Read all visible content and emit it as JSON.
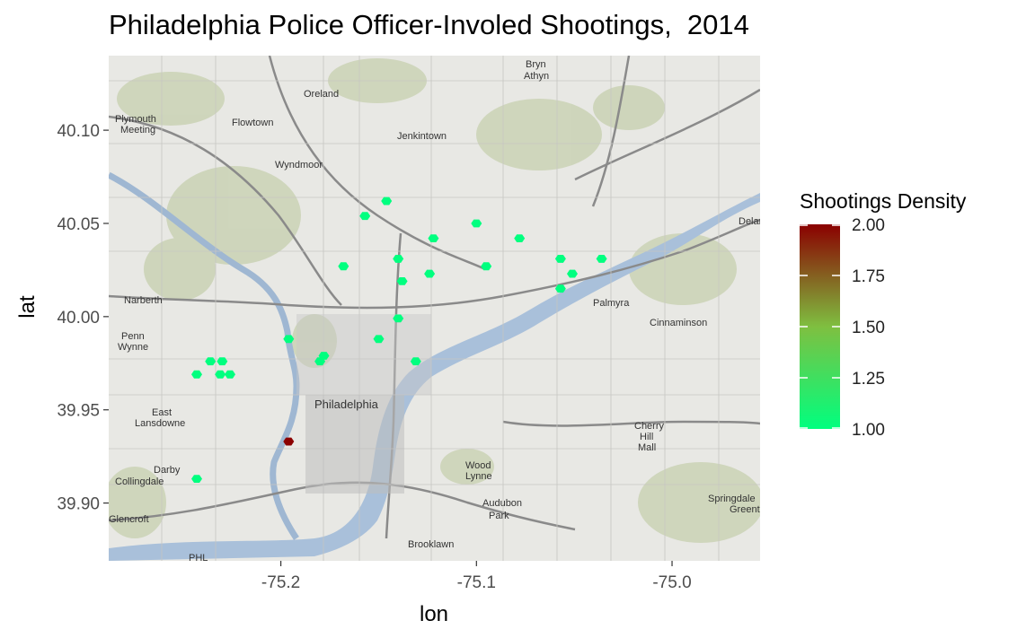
{
  "page": {
    "title": "Philadelphia Police Officer-Involed Shootings,  2014"
  },
  "chart_data": {
    "type": "scatter",
    "title": "Philadelphia Police Officer-Involed Shootings,  2014",
    "xlabel": "lon",
    "ylabel": "lat",
    "xlim": [
      -75.288,
      -74.955
    ],
    "ylim": [
      39.869,
      40.14
    ],
    "x_ticks": [
      -75.2,
      -75.1,
      -75.0
    ],
    "x_tick_labels": [
      "-75.2",
      "-75.1",
      "-75.0"
    ],
    "y_ticks": [
      39.9,
      39.95,
      40.0,
      40.05,
      40.1
    ],
    "y_tick_labels": [
      "39.90",
      "39.95",
      "40.00",
      "40.05",
      "40.10"
    ],
    "background": "street map tiles",
    "legend": {
      "title": "Shootings Density",
      "placement": "right",
      "min": 1.0,
      "max": 2.0,
      "ticks": [
        1.0,
        1.25,
        1.5,
        1.75,
        2.0
      ],
      "tick_labels": [
        "1.00",
        "1.25",
        "1.50",
        "1.75",
        "2.00"
      ],
      "color_low": "#00ff7f",
      "color_mid": "#7fbf40",
      "color_high": "#8b0000"
    },
    "points": [
      {
        "lon": -75.146,
        "lat": 40.062,
        "density": 1.0
      },
      {
        "lon": -75.157,
        "lat": 40.054,
        "density": 1.0
      },
      {
        "lon": -75.1,
        "lat": 40.05,
        "density": 1.0
      },
      {
        "lon": -75.122,
        "lat": 40.042,
        "density": 1.0
      },
      {
        "lon": -75.078,
        "lat": 40.042,
        "density": 1.0
      },
      {
        "lon": -75.14,
        "lat": 40.031,
        "density": 1.0
      },
      {
        "lon": -75.057,
        "lat": 40.031,
        "density": 1.0
      },
      {
        "lon": -75.036,
        "lat": 40.031,
        "density": 1.0
      },
      {
        "lon": -75.168,
        "lat": 40.027,
        "density": 1.0
      },
      {
        "lon": -75.095,
        "lat": 40.027,
        "density": 1.0
      },
      {
        "lon": -75.124,
        "lat": 40.023,
        "density": 1.0
      },
      {
        "lon": -75.051,
        "lat": 40.023,
        "density": 1.0
      },
      {
        "lon": -75.138,
        "lat": 40.019,
        "density": 1.0
      },
      {
        "lon": -75.057,
        "lat": 40.015,
        "density": 1.0
      },
      {
        "lon": -75.14,
        "lat": 39.999,
        "density": 1.0
      },
      {
        "lon": -75.196,
        "lat": 39.988,
        "density": 1.0
      },
      {
        "lon": -75.15,
        "lat": 39.988,
        "density": 1.0
      },
      {
        "lon": -75.178,
        "lat": 39.979,
        "density": 1.0
      },
      {
        "lon": -75.18,
        "lat": 39.976,
        "density": 1.0
      },
      {
        "lon": -75.131,
        "lat": 39.976,
        "density": 1.0
      },
      {
        "lon": -75.236,
        "lat": 39.976,
        "density": 1.0
      },
      {
        "lon": -75.23,
        "lat": 39.976,
        "density": 1.0
      },
      {
        "lon": -75.243,
        "lat": 39.969,
        "density": 1.0
      },
      {
        "lon": -75.231,
        "lat": 39.969,
        "density": 1.0
      },
      {
        "lon": -75.226,
        "lat": 39.969,
        "density": 1.0
      },
      {
        "lon": -75.243,
        "lat": 39.913,
        "density": 1.0
      },
      {
        "lon": -75.196,
        "lat": 39.933,
        "density": 2.0
      }
    ]
  }
}
